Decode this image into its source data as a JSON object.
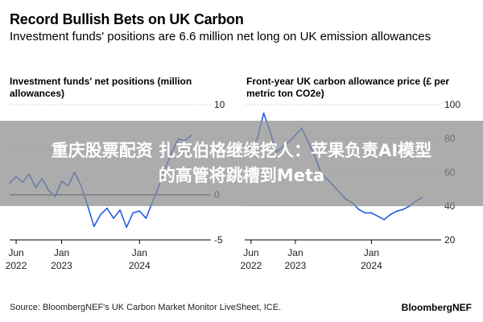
{
  "title": "Record Bullish Bets on UK Carbon",
  "subtitle": "Investment funds' positions are 6.6 million net long on UK emission allowances",
  "overlay": {
    "line1": "重庆股票配资 扎克伯格继续挖人：苹果负责AI模型",
    "line2": "的高管将跳槽到Meta"
  },
  "source": "Source: BloombergNEF's UK Carbon Market Monitor LiveSheet, ICE.",
  "brand": "BloombergNEF",
  "colors": {
    "line": "#1f5fe0",
    "grid": "#cfcfcf",
    "zero": "#000000"
  },
  "chart_data": [
    {
      "type": "line",
      "title": "Investment funds' net positions (million allowances)",
      "xlabel": "",
      "ylabel": "",
      "x_ticks": [
        "Jun 2022",
        "Jan 2023",
        "Jan 2024"
      ],
      "y_ticks": [
        "10",
        "5",
        "0",
        "-5"
      ],
      "ylim": [
        -5,
        10
      ],
      "x_range": [
        "2022-05",
        "2024-12"
      ],
      "grid": true,
      "series": [
        {
          "values": [
            [
              "2022-05",
              1.3
            ],
            [
              "2022-06",
              2.0
            ],
            [
              "2022-07",
              1.4
            ],
            [
              "2022-08",
              2.3
            ],
            [
              "2022-09",
              0.8
            ],
            [
              "2022-10",
              1.8
            ],
            [
              "2022-11",
              0.5
            ],
            [
              "2022-12",
              -0.2
            ],
            [
              "2023-01",
              1.5
            ],
            [
              "2023-02",
              1.0
            ],
            [
              "2023-03",
              2.5
            ],
            [
              "2023-04",
              1.0
            ],
            [
              "2023-05",
              -1.2
            ],
            [
              "2023-06",
              -3.5
            ],
            [
              "2023-07",
              -2.2
            ],
            [
              "2023-08",
              -1.5
            ],
            [
              "2023-09",
              -2.6
            ],
            [
              "2023-10",
              -1.7
            ],
            [
              "2023-11",
              -3.6
            ],
            [
              "2023-12",
              -2.0
            ],
            [
              "2024-01",
              -1.8
            ],
            [
              "2024-02",
              -2.6
            ],
            [
              "2024-03",
              -0.8
            ],
            [
              "2024-04",
              1.0
            ],
            [
              "2024-05",
              3.0
            ],
            [
              "2024-06",
              4.8
            ],
            [
              "2024-07",
              6.2
            ],
            [
              "2024-08",
              6.0
            ],
            [
              "2024-09",
              6.6
            ]
          ]
        }
      ]
    },
    {
      "type": "line",
      "title": "Front-year UK carbon allowance price (£ per metric ton CO2e)",
      "xlabel": "",
      "ylabel": "",
      "x_ticks": [
        "Jun 2022",
        "Jan 2023",
        "Jan 2024"
      ],
      "y_ticks": [
        "100",
        "80",
        "60",
        "40",
        "20"
      ],
      "ylim": [
        20,
        100
      ],
      "x_range": [
        "2022-05",
        "2024-12"
      ],
      "grid": true,
      "series": [
        {
          "values": [
            [
              "2022-05",
              76
            ],
            [
              "2022-06",
              74
            ],
            [
              "2022-07",
              80
            ],
            [
              "2022-08",
              95
            ],
            [
              "2022-09",
              84
            ],
            [
              "2022-10",
              72
            ],
            [
              "2022-11",
              75
            ],
            [
              "2022-12",
              78
            ],
            [
              "2023-01",
              82
            ],
            [
              "2023-02",
              86
            ],
            [
              "2023-03",
              78
            ],
            [
              "2023-04",
              70
            ],
            [
              "2023-05",
              60
            ],
            [
              "2023-06",
              56
            ],
            [
              "2023-07",
              52
            ],
            [
              "2023-08",
              48
            ],
            [
              "2023-09",
              44
            ],
            [
              "2023-10",
              42
            ],
            [
              "2023-11",
              38
            ],
            [
              "2023-12",
              36
            ],
            [
              "2024-01",
              36
            ],
            [
              "2024-02",
              34
            ],
            [
              "2024-03",
              32
            ],
            [
              "2024-04",
              35
            ],
            [
              "2024-05",
              37
            ],
            [
              "2024-06",
              38
            ],
            [
              "2024-07",
              40
            ],
            [
              "2024-08",
              43
            ],
            [
              "2024-09",
              45
            ]
          ]
        }
      ]
    }
  ]
}
